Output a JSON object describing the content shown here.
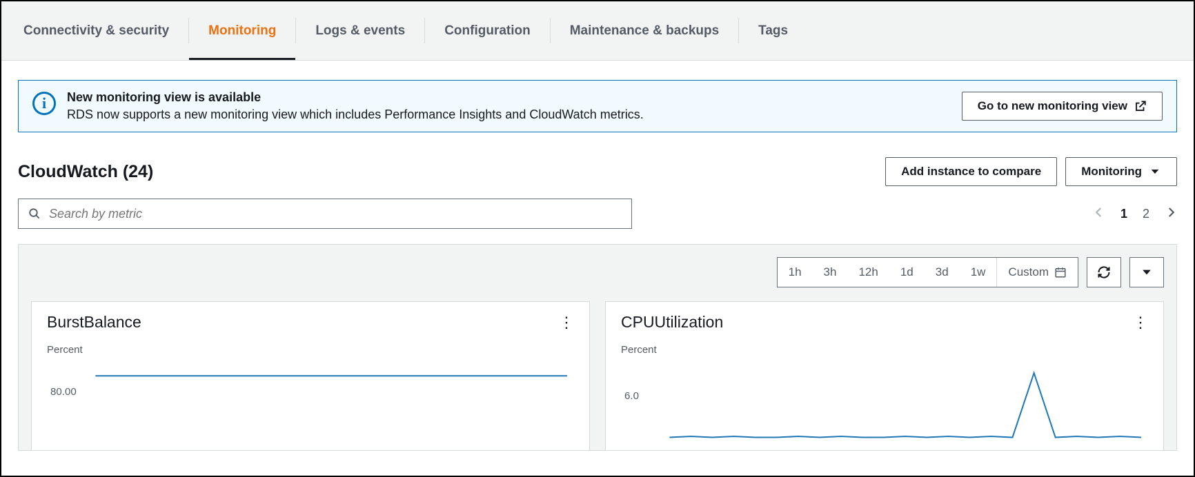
{
  "tabs": [
    {
      "label": "Connectivity & security",
      "active": false
    },
    {
      "label": "Monitoring",
      "active": true
    },
    {
      "label": "Logs & events",
      "active": false
    },
    {
      "label": "Configuration",
      "active": false
    },
    {
      "label": "Maintenance & backups",
      "active": false
    },
    {
      "label": "Tags",
      "active": false
    }
  ],
  "info_banner": {
    "title": "New monitoring view is available",
    "description": "RDS now supports a new monitoring view which includes Performance Insights and CloudWatch metrics.",
    "button": "Go to new monitoring view"
  },
  "section": {
    "title": "CloudWatch (24)",
    "add_button": "Add instance to compare",
    "monitoring_button": "Monitoring",
    "search_placeholder": "Search by metric"
  },
  "pagination": {
    "current": 1,
    "pages": [
      "1",
      "2"
    ]
  },
  "time_ranges": [
    "1h",
    "3h",
    "12h",
    "1d",
    "3d",
    "1w"
  ],
  "custom_label": "Custom",
  "colors": {
    "accent": "#ec7211",
    "info_border": "#0073bb",
    "info_bg": "#f1faff",
    "chart_line": "#1f77b4",
    "grid_bg": "#f2f3f3",
    "border": "#d5dbdb"
  },
  "charts": [
    {
      "title": "BurstBalance",
      "unit": "Percent",
      "line_color": "#1f77b4",
      "ylim": [
        0,
        100
      ],
      "ytick": {
        "value": 80.0,
        "label": "80.00"
      },
      "values": [
        99,
        99,
        99,
        99,
        99,
        99,
        99,
        99,
        99,
        99,
        99,
        99,
        99,
        99,
        99,
        99,
        99,
        99,
        99,
        99,
        99,
        99,
        99,
        99
      ]
    },
    {
      "title": "CPUUtilization",
      "unit": "Percent",
      "line_color": "#1f77b4",
      "ylim": [
        0,
        8
      ],
      "ytick": {
        "value": 6.0,
        "label": "6.0"
      },
      "values": [
        2.0,
        2.1,
        2.0,
        2.1,
        2.0,
        2.0,
        2.1,
        2.0,
        2.1,
        2.0,
        2.0,
        2.1,
        2.0,
        2.1,
        2.0,
        2.1,
        2.0,
        8.2,
        2.0,
        2.1,
        2.0,
        2.1,
        2.0
      ]
    }
  ]
}
